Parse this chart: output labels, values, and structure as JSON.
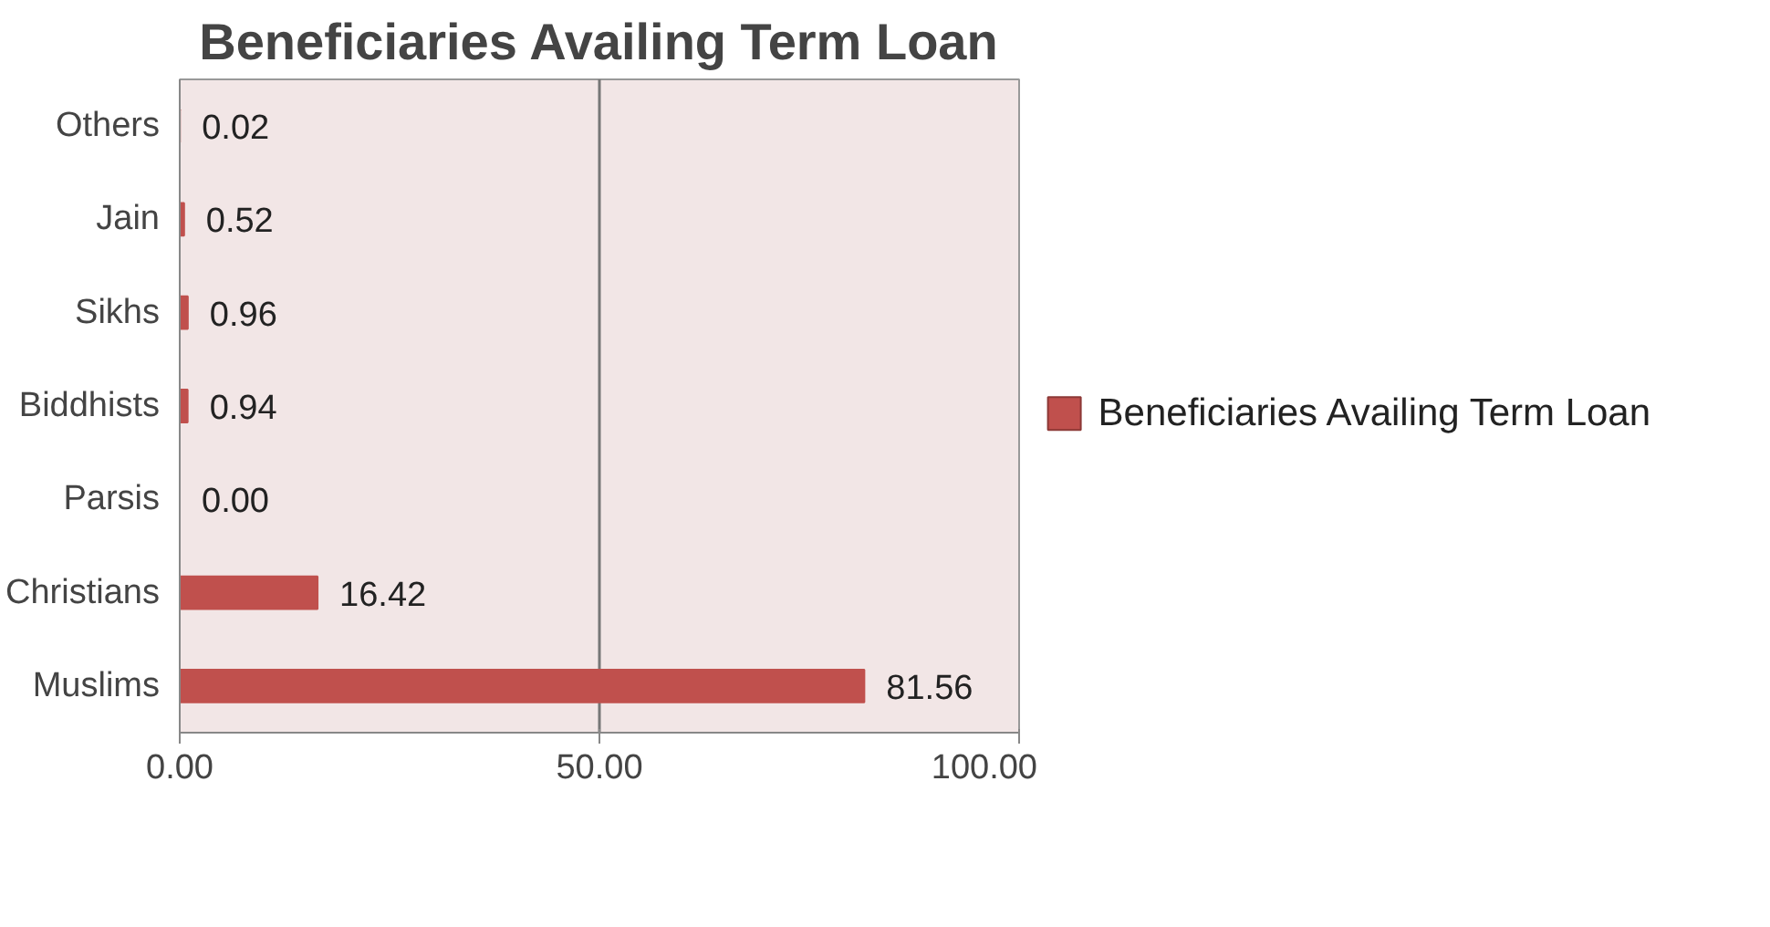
{
  "chart_data": {
    "type": "bar",
    "orientation": "horizontal",
    "title": "Beneficiaries Availing Term Loan",
    "categories": [
      "Others",
      "Jain",
      "Sikhs",
      "Biddhists",
      "Parsis",
      "Christians",
      "Muslims"
    ],
    "series": [
      {
        "name": "Beneficiaries Availing Term Loan",
        "color": "#c0504d",
        "values": [
          0.02,
          0.52,
          0.96,
          0.94,
          0.0,
          16.42,
          81.56
        ],
        "value_labels": [
          "0.02",
          "0.52",
          "0.96",
          "0.94",
          "0.00",
          "16.42",
          "81.56"
        ]
      }
    ],
    "xlim": [
      0,
      100
    ],
    "xticks": [
      {
        "value": 0,
        "label": "0.00"
      },
      {
        "value": 50,
        "label": "50.00"
      },
      {
        "value": 100,
        "label": "100.00"
      }
    ],
    "grid": "x",
    "legend": "right"
  }
}
